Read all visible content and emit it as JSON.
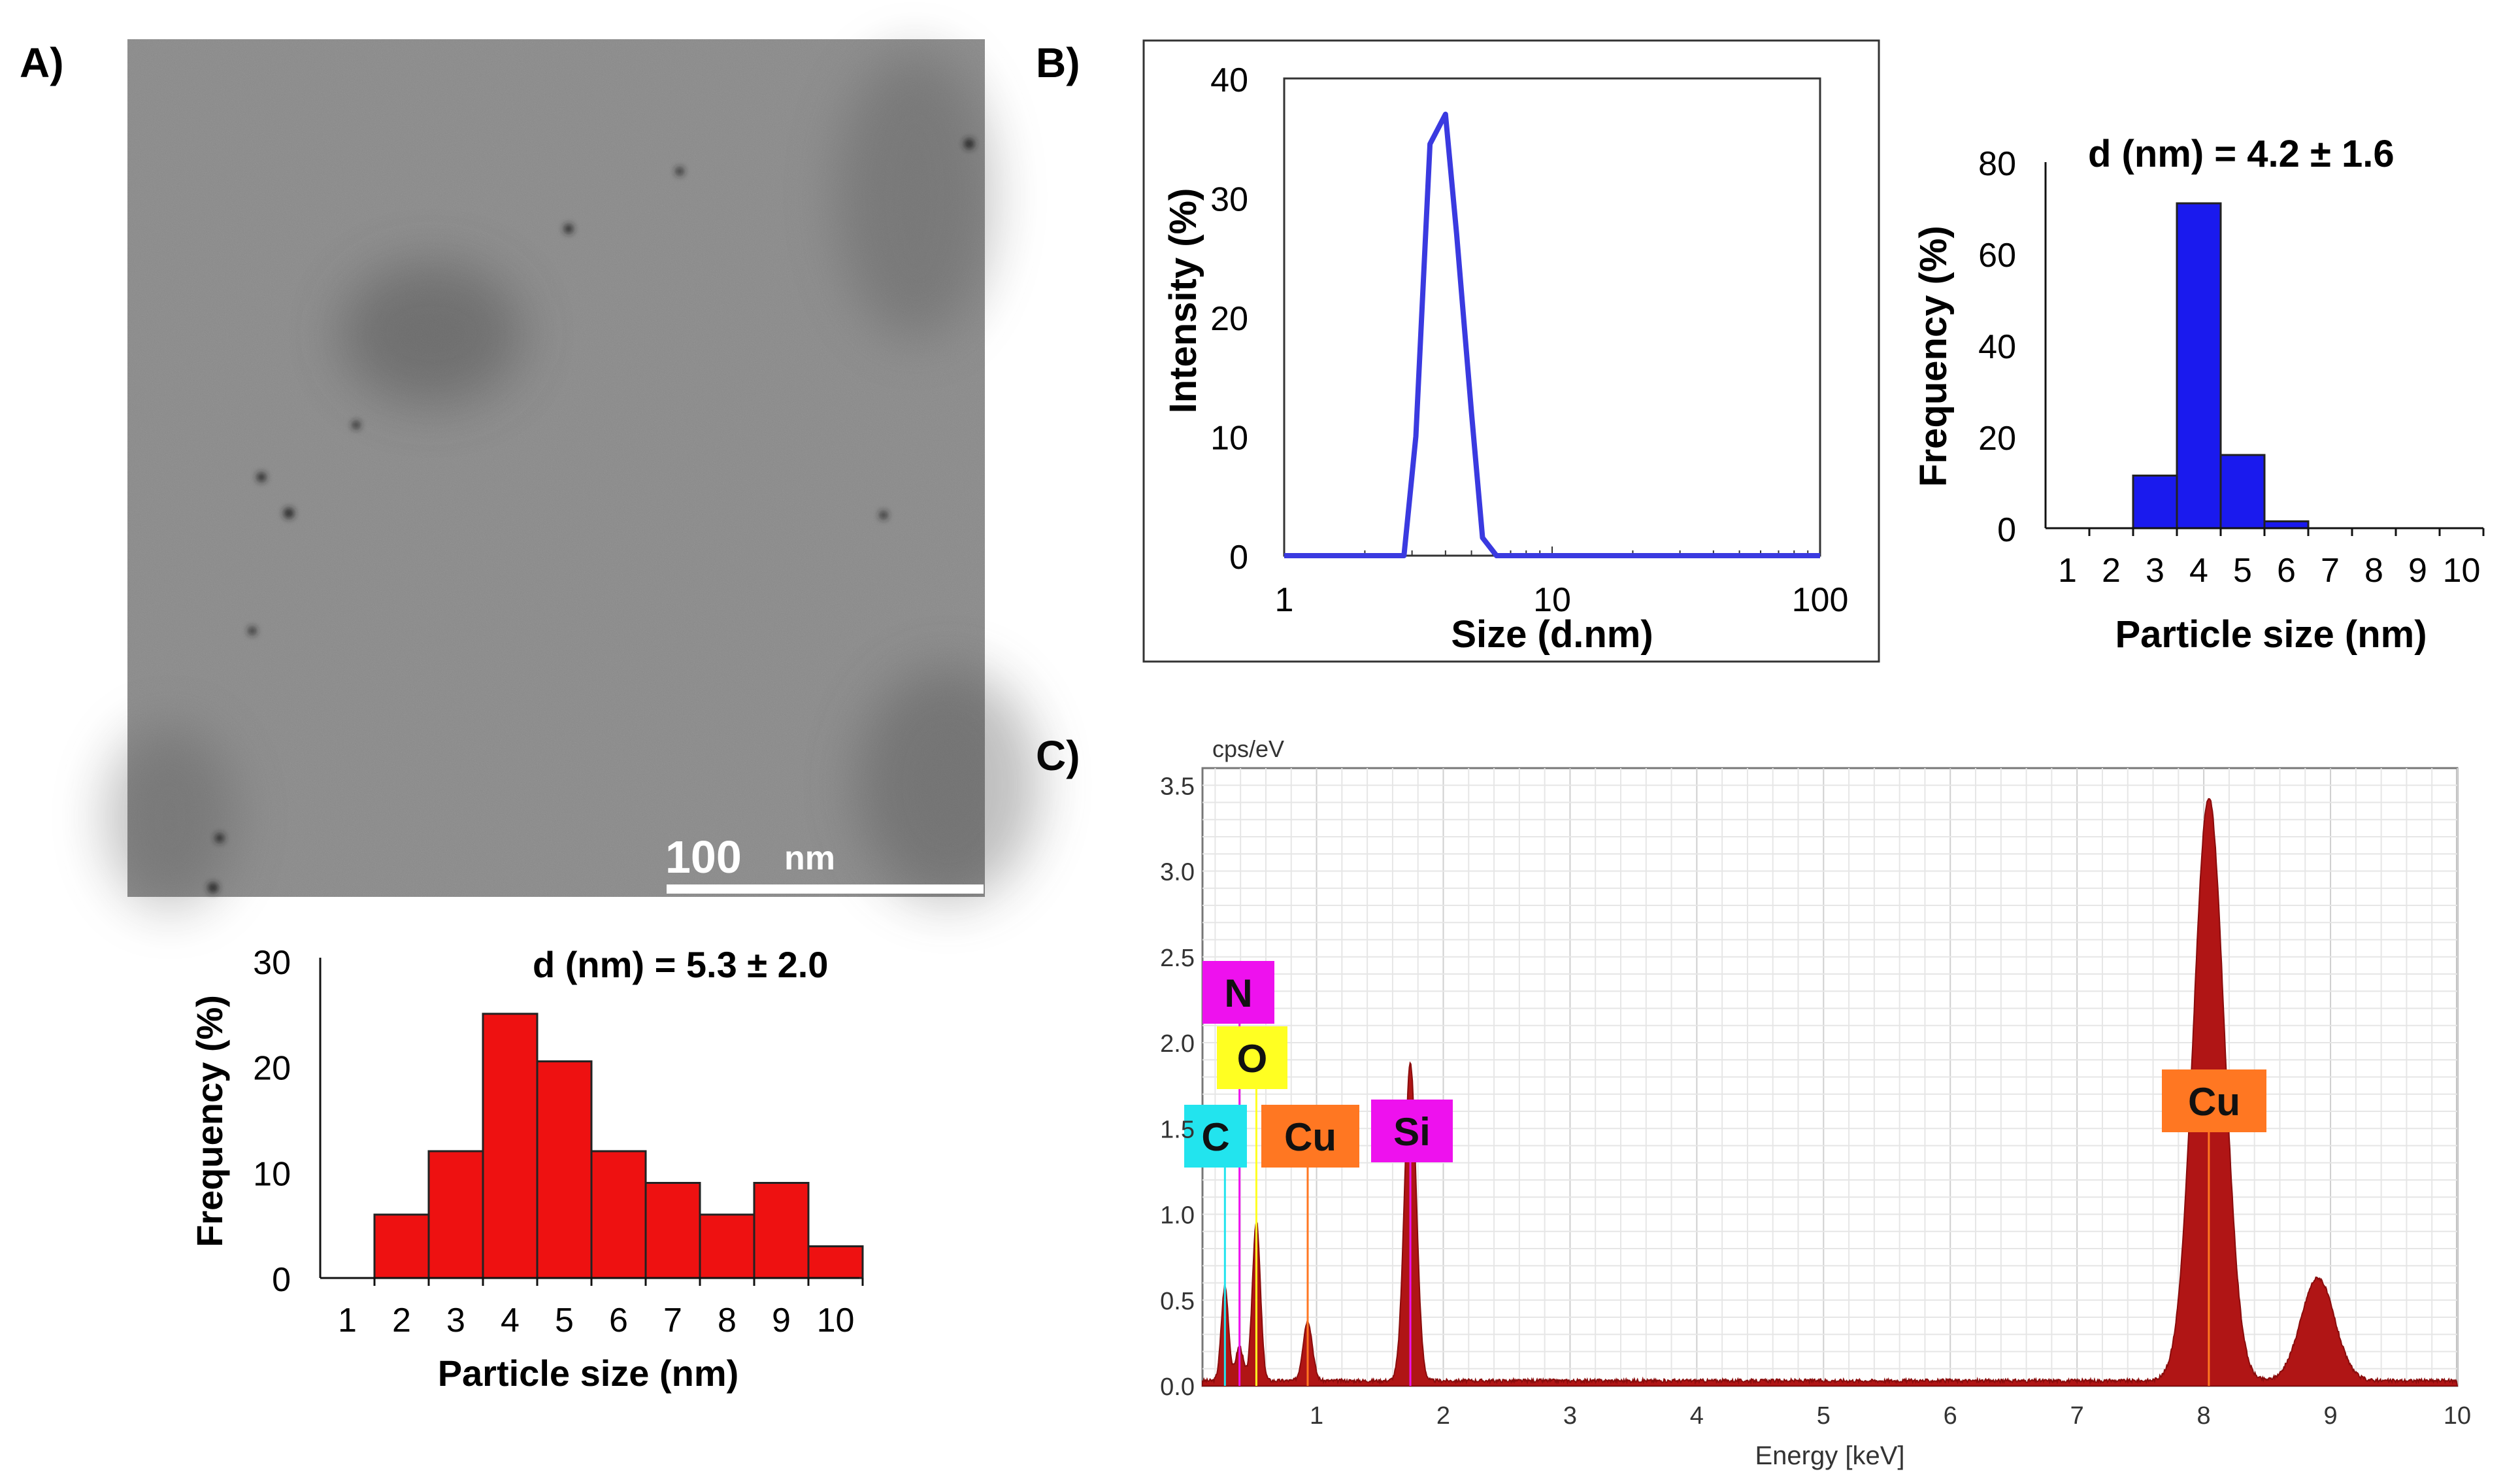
{
  "panels": {
    "a": "A)",
    "b": "B)",
    "c": "C)"
  },
  "tem": {
    "scale_value": "100",
    "scale_unit": "nm"
  },
  "chart_data": [
    {
      "type": "bar",
      "id": "tem_histogram",
      "annotation": "d (nm) = 5.3 ± 2.0",
      "xlabel": "Particle size (nm)",
      "ylabel": "Frequency (%)",
      "categories": [
        "1",
        "2",
        "3",
        "4",
        "5",
        "6",
        "7",
        "8",
        "9",
        "10"
      ],
      "values": [
        0,
        6,
        12,
        25,
        20.5,
        12,
        9,
        6,
        9,
        3
      ],
      "ylim": [
        0,
        30
      ],
      "yticks": [
        "0",
        "10",
        "20",
        "30"
      ],
      "color": "#ee1111"
    },
    {
      "type": "line",
      "id": "dls_intensity",
      "xscale": "log",
      "xlabel": "Size (d.nm)",
      "ylabel": "Intensity (%)",
      "xlim": [
        1,
        100
      ],
      "ylim": [
        0,
        40
      ],
      "xticks": [
        "1",
        "10",
        "100"
      ],
      "yticks": [
        "0",
        "10",
        "20",
        "30",
        "40"
      ],
      "x": [
        1,
        2.8,
        3.1,
        3.5,
        4.0,
        4.4,
        5.0,
        5.5,
        6.2,
        10,
        100
      ],
      "y": [
        0,
        0,
        10,
        34.5,
        37,
        27,
        12,
        1.5,
        0,
        0,
        0
      ],
      "color": "#3a3ae0"
    },
    {
      "type": "bar",
      "id": "dls_histogram",
      "annotation": "d (nm) = 4.2 ± 1.6",
      "xlabel": "Particle size (nm)",
      "ylabel": "Frequency (%)",
      "categories": [
        "1",
        "2",
        "3",
        "4",
        "5",
        "6",
        "7",
        "8",
        "9",
        "10"
      ],
      "values": [
        0,
        0,
        11.5,
        71,
        16,
        1.5,
        0,
        0,
        0,
        0
      ],
      "ylim": [
        0,
        80
      ],
      "yticks": [
        "0",
        "20",
        "40",
        "60",
        "80"
      ],
      "color": "#1a1aee"
    },
    {
      "type": "area",
      "id": "eds_spectrum",
      "xlabel": "Energy [keV]",
      "ylabel": "cps/eV",
      "xlim": [
        0.1,
        10
      ],
      "ylim": [
        0,
        3.6
      ],
      "xticks": [
        "1",
        "2",
        "3",
        "4",
        "5",
        "6",
        "7",
        "8",
        "9",
        "10"
      ],
      "yticks": [
        "0.0",
        "0.5",
        "1.0",
        "1.5",
        "2.0",
        "2.5",
        "3.0",
        "3.5"
      ],
      "peaks": [
        {
          "element": "C",
          "energy": 0.277,
          "height": 0.55
        },
        {
          "element": "N",
          "energy": 0.392,
          "height": 0.2
        },
        {
          "element": "O",
          "energy": 0.525,
          "height": 0.93
        },
        {
          "element": "Cu",
          "energy": 0.93,
          "height": 0.35
        },
        {
          "element": "Si",
          "energy": 1.74,
          "height": 1.85
        },
        {
          "element": "Cu",
          "energy": 8.04,
          "height": 3.4
        },
        {
          "element": "Cu",
          "energy": 8.9,
          "height": 0.6
        }
      ],
      "labels": [
        {
          "text": "N",
          "color": "#ee11ee",
          "line_energy": 0.392
        },
        {
          "text": "O",
          "color": "#ffff22",
          "line_energy": 0.525
        },
        {
          "text": "C",
          "color": "#22e4ee",
          "line_energy": 0.277
        },
        {
          "text": "Cu",
          "color": "#ff7722",
          "line_energy": 0.93
        },
        {
          "text": "Si",
          "color": "#ee11ee",
          "line_energy": 1.74
        },
        {
          "text": "Cu",
          "color": "#ff7722",
          "line_energy": 8.04
        }
      ],
      "fill": "#b01515",
      "grid": true
    }
  ]
}
